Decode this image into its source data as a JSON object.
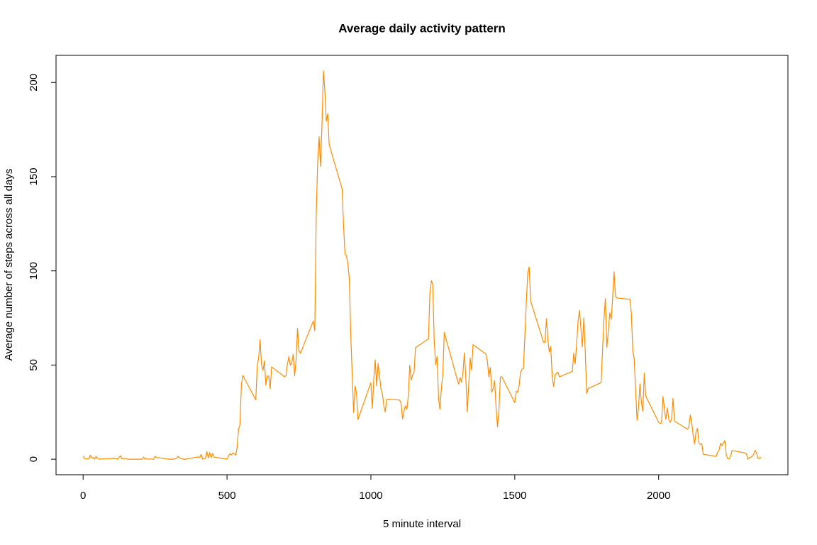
{
  "chart_data": {
    "type": "line",
    "title": "Average daily activity pattern",
    "xlabel": "5 minute interval",
    "ylabel": "Average number of steps across all days",
    "color": "#ff8c00",
    "xlim": [
      -94.2,
      2449.2
    ],
    "ylim": [
      -8.25,
      214.42
    ],
    "xticks": [
      0,
      500,
      1000,
      1500,
      2000
    ],
    "yticks": [
      0,
      50,
      100,
      150,
      200
    ],
    "x": [
      0,
      5,
      10,
      15,
      20,
      25,
      30,
      35,
      40,
      45,
      50,
      55,
      100,
      105,
      110,
      115,
      120,
      125,
      130,
      135,
      140,
      145,
      150,
      155,
      200,
      205,
      210,
      215,
      220,
      225,
      230,
      235,
      240,
      245,
      250,
      255,
      300,
      305,
      310,
      315,
      320,
      325,
      330,
      335,
      340,
      345,
      350,
      355,
      400,
      405,
      410,
      415,
      420,
      425,
      430,
      435,
      440,
      445,
      450,
      455,
      500,
      505,
      510,
      515,
      520,
      525,
      530,
      535,
      540,
      545,
      550,
      555,
      600,
      605,
      610,
      615,
      620,
      625,
      630,
      635,
      640,
      645,
      650,
      655,
      700,
      705,
      710,
      715,
      720,
      725,
      730,
      735,
      740,
      745,
      750,
      755,
      800,
      805,
      810,
      815,
      820,
      825,
      830,
      835,
      840,
      845,
      850,
      855,
      900,
      905,
      910,
      915,
      920,
      925,
      930,
      935,
      940,
      945,
      950,
      955,
      1000,
      1005,
      1010,
      1015,
      1020,
      1025,
      1030,
      1035,
      1040,
      1045,
      1050,
      1055,
      1100,
      1105,
      1110,
      1115,
      1120,
      1125,
      1130,
      1135,
      1140,
      1145,
      1150,
      1155,
      1200,
      1205,
      1210,
      1215,
      1220,
      1225,
      1230,
      1235,
      1240,
      1245,
      1250,
      1255,
      1300,
      1305,
      1310,
      1315,
      1320,
      1325,
      1330,
      1335,
      1340,
      1345,
      1350,
      1355,
      1400,
      1405,
      1410,
      1415,
      1420,
      1425,
      1430,
      1435,
      1440,
      1445,
      1450,
      1455,
      1500,
      1505,
      1510,
      1515,
      1520,
      1525,
      1530,
      1535,
      1540,
      1545,
      1550,
      1555,
      1600,
      1605,
      1610,
      1615,
      1620,
      1625,
      1630,
      1635,
      1640,
      1645,
      1650,
      1655,
      1700,
      1705,
      1710,
      1715,
      1720,
      1725,
      1730,
      1735,
      1740,
      1745,
      1750,
      1755,
      1800,
      1805,
      1810,
      1815,
      1820,
      1825,
      1830,
      1835,
      1840,
      1845,
      1850,
      1855,
      1900,
      1905,
      1910,
      1915,
      1920,
      1925,
      1930,
      1935,
      1940,
      1945,
      1950,
      1955,
      2000,
      2005,
      2010,
      2015,
      2020,
      2025,
      2030,
      2035,
      2040,
      2045,
      2050,
      2055,
      2100,
      2105,
      2110,
      2115,
      2120,
      2125,
      2130,
      2135,
      2140,
      2145,
      2150,
      2155,
      2200,
      2205,
      2210,
      2215,
      2220,
      2225,
      2230,
      2235,
      2240,
      2245,
      2250,
      2255,
      2300,
      2305,
      2310,
      2315,
      2320,
      2325,
      2330,
      2335,
      2340,
      2345,
      2350,
      2355
    ],
    "values": [
      1.7,
      0.3,
      0.1,
      0.2,
      0.1,
      2.1,
      0.5,
      0.9,
      0,
      1.5,
      0.3,
      0.1,
      0.3,
      0.7,
      0.2,
      0.3,
      0,
      1.1,
      1.8,
      0.2,
      0.2,
      0.4,
      0.3,
      0,
      0,
      0,
      1.1,
      0,
      0.2,
      0.1,
      0,
      0.2,
      0,
      0,
      1.5,
      0.9,
      0,
      0,
      0,
      0,
      0.2,
      0.6,
      1.6,
      0.6,
      0.5,
      0.1,
      0,
      0,
      1.2,
      0.9,
      2.6,
      0,
      0.3,
      0.4,
      4.1,
      0.7,
      3.5,
      0.8,
      3.1,
      1.1,
      0,
      1.6,
      3,
      2.2,
      3.3,
      3,
      2.1,
      6.1,
      16,
      18.3,
      39.5,
      44.5,
      31.5,
      49.3,
      53.8,
      63.5,
      50,
      47.1,
      52.2,
      39.3,
      44.1,
      44.2,
      37.4,
      49,
      43.8,
      44.4,
      50.5,
      54.5,
      49.9,
      51,
      55.7,
      44.3,
      52.3,
      69.5,
      57.8,
      56.2,
      73.4,
      68.2,
      129.4,
      157.5,
      171.2,
      155.4,
      177.3,
      206.2,
      195.9,
      179.6,
      183.4,
      167,
      143.5,
      124,
      109.1,
      108.1,
      103.7,
      95.9,
      66.2,
      45.2,
      24.8,
      38.8,
      34.9,
      21.1,
      40.6,
      27,
      42.4,
      52.7,
      38.9,
      50.8,
      44.3,
      37.4,
      34.7,
      28.3,
      25.1,
      31.9,
      31.4,
      29.7,
      21.3,
      25.5,
      28.4,
      26.5,
      33.4,
      49.9,
      42,
      44.6,
      46,
      59.2,
      63.9,
      87.7,
      94.8,
      92.8,
      63.4,
      50.2,
      54.5,
      32.4,
      26.5,
      37.7,
      45.1,
      67.3,
      42.3,
      39.9,
      43.3,
      40.9,
      46.2,
      56.4,
      42.8,
      25.1,
      39.5,
      53.8,
      47.4,
      60.8,
      55.8,
      51.9,
      43.6,
      48.7,
      35.5,
      37.5,
      41.8,
      27.5,
      17.1,
      26.1,
      43.6,
      43.8,
      30,
      36.1,
      35.5,
      38.8,
      46,
      47.8,
      48.1,
      65.3,
      82.9,
      98.7,
      102.1,
      84,
      62.1,
      62.1,
      74.5,
      63.2,
      56.9,
      59.8,
      43.9,
      38.6,
      44.7,
      45.5,
      46.2,
      43.7,
      46.6,
      56.3,
      50.7,
      61.2,
      73.4,
      79.1,
      68.9,
      59.7,
      75.1,
      56.5,
      34.8,
      37.5,
      40.7,
      58,
      74.7,
      85.3,
      59.3,
      67.8,
      77.7,
      74.2,
      85.3,
      99.5,
      86.6,
      85.6,
      84.9,
      77.8,
      58,
      53.4,
      36.3,
      20.7,
      27.4,
      40,
      30.2,
      25.5,
      45.7,
      33.5,
      19.6,
      19,
      19.3,
      33.3,
      26.8,
      21.2,
      27.3,
      21.3,
      19.5,
      21.3,
      32.3,
      20.2,
      15.9,
      17.2,
      23.5,
      19.2,
      12.5,
      8,
      14.7,
      16.3,
      8.7,
      7.8,
      8.1,
      2.6,
      1.5,
      3.7,
      4.8,
      8.5,
      7.1,
      8.7,
      9.8,
      2.2,
      0.3,
      0.1,
      1.6,
      4.6,
      3.3,
      2.8,
      0,
      0.8,
      1,
      1.6,
      2.6,
      4.7,
      3.3,
      0.6,
      0.2,
      1.1
    ]
  }
}
